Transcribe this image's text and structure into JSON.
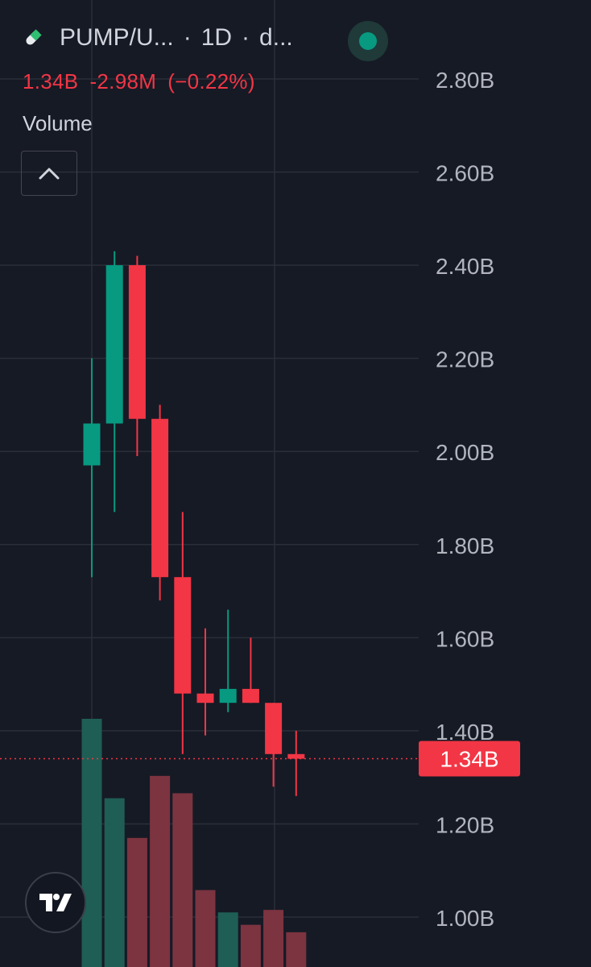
{
  "header": {
    "symbol": "PUMP/U...",
    "separator1": "·",
    "interval": "1D",
    "separator2": "·",
    "source": "d...",
    "change": {
      "value": "1.34B",
      "abs": "-2.98M",
      "pct": "(−0.22%)"
    },
    "indicator": "Volume"
  },
  "colors": {
    "background": "#161a25",
    "up": "#089981",
    "down": "#f23645",
    "up_volume": "#1f5e55",
    "down_volume": "#7c3440",
    "grid": "#2a2e39",
    "axis_text": "#b2b5be",
    "text": "#d1d4dc"
  },
  "icons": {
    "symbol": "pill-icon",
    "status": "live-dot-icon",
    "collapse": "chevron-up-icon",
    "logo": "tradingview-logo-icon"
  },
  "chart_data": {
    "type": "candlestick",
    "y_axis": {
      "ticks": [
        "2.80B",
        "2.60B",
        "2.40B",
        "2.20B",
        "2.00B",
        "1.80B",
        "1.60B",
        "1.40B",
        "1.20B",
        "1.00B"
      ],
      "tick_values": [
        2.8,
        2.6,
        2.4,
        2.2,
        2.0,
        1.8,
        1.6,
        1.4,
        1.2,
        1.0
      ],
      "unit": "B",
      "range": [
        0.94,
        2.94
      ]
    },
    "grid": true,
    "current_price": {
      "value": 1.34,
      "label": "1.34B"
    },
    "candles": [
      {
        "open": 1.97,
        "high": 2.2,
        "low": 1.73,
        "close": 2.06
      },
      {
        "open": 2.06,
        "high": 2.43,
        "low": 1.87,
        "close": 2.4
      },
      {
        "open": 2.4,
        "high": 2.42,
        "low": 1.99,
        "close": 2.07
      },
      {
        "open": 2.07,
        "high": 2.1,
        "low": 1.68,
        "close": 1.73
      },
      {
        "open": 1.73,
        "high": 1.87,
        "low": 1.35,
        "close": 1.48
      },
      {
        "open": 1.48,
        "high": 1.62,
        "low": 1.39,
        "close": 1.46
      },
      {
        "open": 1.46,
        "high": 1.66,
        "low": 1.44,
        "close": 1.49
      },
      {
        "open": 1.49,
        "high": 1.6,
        "low": 1.46,
        "close": 1.46
      },
      {
        "open": 1.46,
        "high": 1.46,
        "low": 1.28,
        "close": 1.35
      },
      {
        "open": 1.35,
        "high": 1.4,
        "low": 1.26,
        "close": 1.34
      }
    ],
    "volume": [
      1.0,
      0.68,
      0.52,
      0.77,
      0.7,
      0.31,
      0.22,
      0.17,
      0.23,
      0.14
    ]
  }
}
